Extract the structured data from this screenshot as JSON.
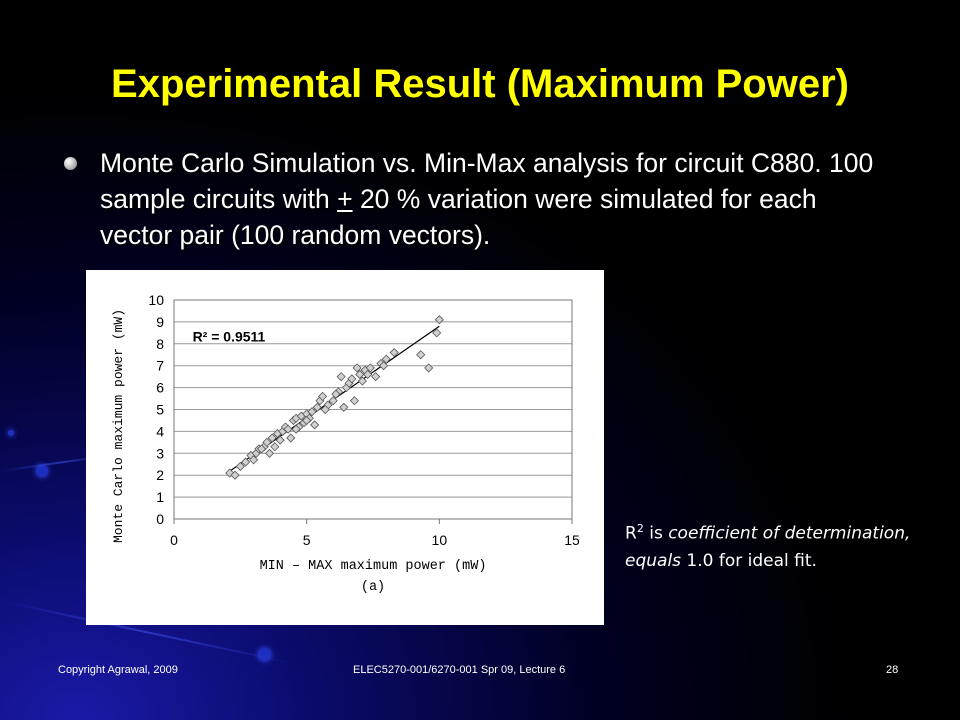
{
  "slide": {
    "title": "Experimental Result (Maximum Power)",
    "bullet": {
      "part1": "Monte Carlo Simulation vs. Min-Max analysis for circuit C880. 100 sample circuits with ",
      "underlined": "+",
      "part2": " 20 % variation were simulated for each vector pair (100 random vectors)."
    },
    "note": {
      "r": "R",
      "sup": "2",
      "text1": " is ",
      "italic": "coefficient of determination, equals",
      "text2": " 1.0 for ideal fit."
    },
    "footer": {
      "left": "Copyright Agrawal, 2009",
      "center": "ELEC5270-001/6270-001  Spr 09, Lecture 6",
      "page": "28"
    }
  },
  "chart_data": {
    "type": "scatter",
    "xlabel": "MIN – MAX maximum power (mW)",
    "ylabel": "Monte Carlo maximum power (mW)",
    "caption": "(a)",
    "annotation": "R² = 0.9511",
    "xlim": [
      0,
      15
    ],
    "ylim": [
      0,
      10
    ],
    "xticks": [
      0,
      5,
      10,
      15
    ],
    "yticks": [
      0,
      1,
      2,
      3,
      4,
      5,
      6,
      7,
      8,
      9,
      10
    ],
    "grid": "horizontal",
    "trendline": {
      "x": [
        2.0,
        10.0
      ],
      "y": [
        2.1,
        8.8
      ]
    },
    "x": [
      2.1,
      2.3,
      2.5,
      2.7,
      2.9,
      3.1,
      3.2,
      3.4,
      3.5,
      3.6,
      3.7,
      3.9,
      4.0,
      4.1,
      4.2,
      4.3,
      4.4,
      4.5,
      4.6,
      4.7,
      4.8,
      4.9,
      5.0,
      5.1,
      5.2,
      5.3,
      5.4,
      5.5,
      5.6,
      5.8,
      6.0,
      6.2,
      6.3,
      6.4,
      6.5,
      6.6,
      6.8,
      6.9,
      7.0,
      7.1,
      7.2,
      7.4,
      7.6,
      7.8,
      8.0,
      8.3,
      9.3,
      9.6,
      9.9,
      10.0,
      3.0,
      3.3,
      3.8,
      4.6,
      5.0,
      5.7,
      6.1,
      6.7,
      7.3,
      7.9
    ],
    "y": [
      2.1,
      2.0,
      2.4,
      2.6,
      2.9,
      3.0,
      3.2,
      3.3,
      3.5,
      3.0,
      3.7,
      3.9,
      3.6,
      4.0,
      4.2,
      4.1,
      3.7,
      4.5,
      4.6,
      4.2,
      4.7,
      4.4,
      4.8,
      4.6,
      4.9,
      4.3,
      5.1,
      5.4,
      5.6,
      5.2,
      5.4,
      5.8,
      6.5,
      5.1,
      6.0,
      6.2,
      5.4,
      6.9,
      6.6,
      6.3,
      6.8,
      6.9,
      6.5,
      7.1,
      7.3,
      7.6,
      7.5,
      6.9,
      8.5,
      9.1,
      2.7,
      3.2,
      3.3,
      4.1,
      4.5,
      5.0,
      5.7,
      6.4,
      6.6,
      7.0
    ]
  }
}
